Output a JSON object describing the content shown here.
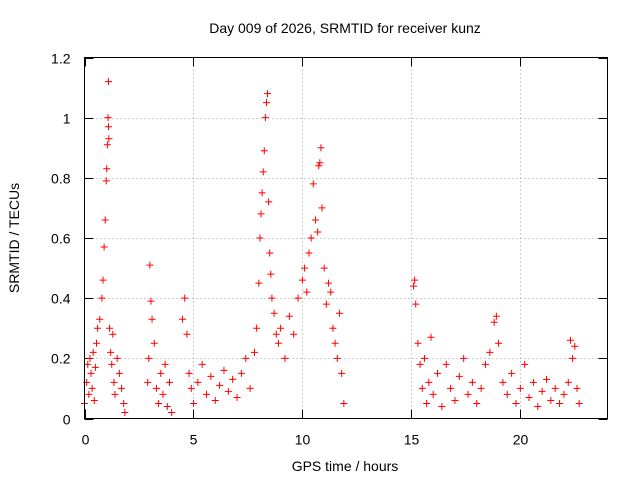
{
  "chart_data": {
    "type": "scatter",
    "title": "Day 009 of 2026, SRMTID for receiver kunz",
    "xlabel": "GPS time / hours",
    "ylabel": "SRMTID / TECUs",
    "xlim": [
      0,
      24
    ],
    "ylim": [
      0,
      1.2
    ],
    "xticks": [
      0,
      5,
      10,
      15,
      20
    ],
    "xtick_labels": [
      "0",
      "5",
      "10",
      "15",
      "20"
    ],
    "yticks": [
      0,
      0.2,
      0.4,
      0.6,
      0.8,
      1.0,
      1.2
    ],
    "ytick_labels": [
      "0",
      "0.2",
      "0.4",
      "0.6",
      "0.8",
      "1",
      "1.2"
    ],
    "grid": true,
    "marker": "+",
    "marker_color": "#ff0000",
    "series": [
      {
        "name": "SRMTID",
        "x": [
          0.0,
          0.1,
          0.15,
          0.2,
          0.25,
          0.3,
          0.35,
          0.4,
          0.45,
          0.5,
          0.55,
          0.6,
          0.7,
          0.8,
          0.85,
          0.9,
          0.95,
          1.0,
          1.02,
          1.05,
          1.08,
          1.1,
          1.1,
          1.12,
          1.15,
          1.2,
          1.25,
          1.3,
          1.35,
          1.4,
          1.5,
          1.6,
          1.7,
          1.8,
          1.85,
          2.9,
          2.95,
          3.0,
          3.05,
          3.1,
          3.2,
          3.3,
          3.4,
          3.5,
          3.6,
          3.7,
          3.8,
          3.9,
          4.0,
          4.5,
          4.6,
          4.7,
          4.8,
          4.9,
          5.0,
          5.2,
          5.4,
          5.6,
          5.8,
          6.0,
          6.2,
          6.4,
          6.6,
          6.8,
          7.0,
          7.2,
          7.4,
          7.6,
          7.8,
          7.9,
          8.0,
          8.05,
          8.1,
          8.15,
          8.2,
          8.25,
          8.3,
          8.35,
          8.4,
          8.45,
          8.5,
          8.55,
          8.6,
          8.7,
          8.8,
          8.9,
          9.0,
          9.2,
          9.4,
          9.6,
          9.8,
          10.0,
          10.1,
          10.2,
          10.3,
          10.4,
          10.5,
          10.6,
          10.7,
          10.75,
          10.8,
          10.85,
          10.9,
          11.0,
          11.1,
          11.2,
          11.3,
          11.4,
          11.5,
          11.6,
          11.7,
          11.8,
          11.9,
          15.1,
          15.15,
          15.2,
          15.3,
          15.4,
          15.5,
          15.6,
          15.7,
          15.8,
          15.9,
          16.0,
          16.2,
          16.4,
          16.6,
          16.8,
          17.0,
          17.2,
          17.4,
          17.6,
          17.8,
          18.0,
          18.2,
          18.4,
          18.6,
          18.8,
          18.9,
          19.0,
          19.2,
          19.4,
          19.6,
          19.8,
          20.0,
          20.2,
          20.4,
          20.6,
          20.8,
          21.0,
          21.2,
          21.4,
          21.6,
          21.8,
          22.0,
          22.2,
          22.3,
          22.4,
          22.5,
          22.6,
          22.7
        ],
        "y": [
          0.05,
          0.12,
          0.18,
          0.08,
          0.2,
          0.15,
          0.1,
          0.22,
          0.06,
          0.17,
          0.25,
          0.3,
          0.33,
          0.4,
          0.46,
          0.57,
          0.66,
          0.79,
          0.83,
          0.91,
          1.0,
          1.12,
          0.97,
          0.93,
          0.3,
          0.22,
          0.18,
          0.28,
          0.12,
          0.08,
          0.2,
          0.15,
          0.1,
          0.05,
          0.02,
          0.12,
          0.2,
          0.51,
          0.39,
          0.33,
          0.25,
          0.1,
          0.05,
          0.15,
          0.08,
          0.18,
          0.04,
          0.12,
          0.02,
          0.33,
          0.4,
          0.28,
          0.15,
          0.1,
          0.05,
          0.12,
          0.18,
          0.08,
          0.14,
          0.06,
          0.11,
          0.16,
          0.09,
          0.13,
          0.07,
          0.15,
          0.2,
          0.1,
          0.22,
          0.3,
          0.45,
          0.6,
          0.68,
          0.75,
          0.82,
          0.89,
          1.0,
          1.05,
          1.08,
          0.72,
          0.55,
          0.48,
          0.4,
          0.35,
          0.28,
          0.25,
          0.3,
          0.2,
          0.34,
          0.28,
          0.4,
          0.46,
          0.5,
          0.42,
          0.55,
          0.6,
          0.78,
          0.66,
          0.62,
          0.84,
          0.85,
          0.9,
          0.7,
          0.5,
          0.38,
          0.45,
          0.42,
          0.3,
          0.25,
          0.2,
          0.35,
          0.15,
          0.05,
          0.44,
          0.46,
          0.38,
          0.25,
          0.18,
          0.1,
          0.2,
          0.05,
          0.12,
          0.27,
          0.08,
          0.15,
          0.04,
          0.18,
          0.1,
          0.06,
          0.14,
          0.2,
          0.08,
          0.12,
          0.05,
          0.1,
          0.18,
          0.22,
          0.32,
          0.34,
          0.25,
          0.12,
          0.08,
          0.15,
          0.05,
          0.1,
          0.18,
          0.07,
          0.12,
          0.04,
          0.09,
          0.13,
          0.06,
          0.1,
          0.05,
          0.08,
          0.12,
          0.26,
          0.2,
          0.24,
          0.1,
          0.05
        ]
      }
    ]
  }
}
